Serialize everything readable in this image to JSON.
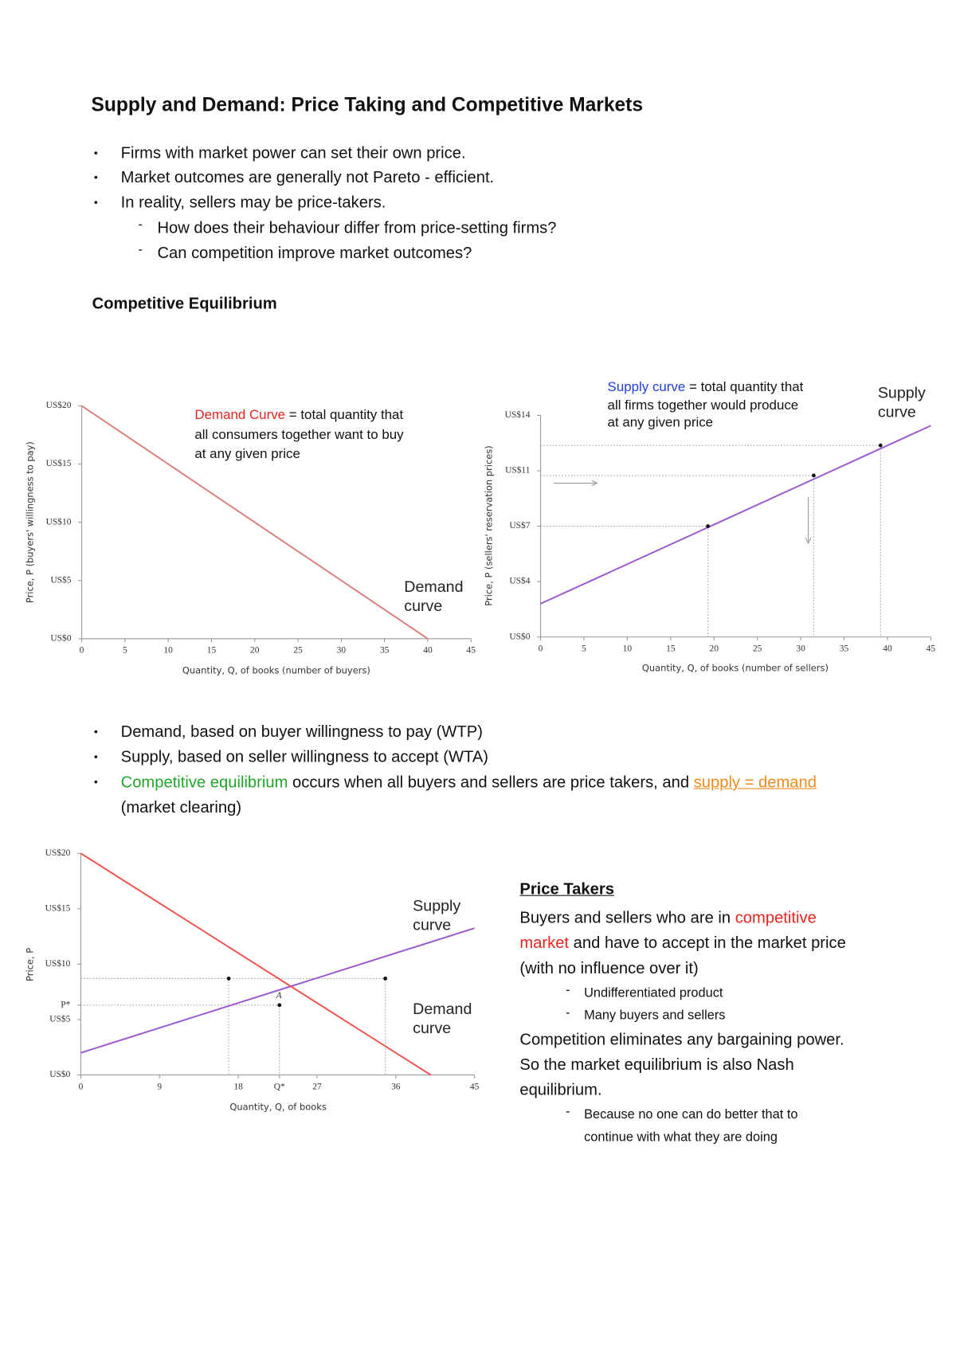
{
  "title": "Supply and Demand: Price Taking and Competitive Markets",
  "bullets": [
    "Firms with market power can set their own price.",
    "Market outcomes are generally not Pareto - efficient.",
    "In reality, sellers may be price-takers."
  ],
  "sub_bullets": [
    "How does their behaviour differ from price-setting firms?",
    "Can competition improve market outcomes?"
  ],
  "section_heading": "Competitive Equilibrium",
  "summary_bullets": [
    "Demand, based on buyer willingness to pay (WTP)",
    "Supply, based on seller willingness to accept (WTA)"
  ],
  "equilibrium_bullet": [
    "Competitive equilibrium",
    " occurs when all buyers and sellers are price takers, and ",
    "supply = demand",
    " (market clearing)"
  ],
  "price_takers": {
    "heading": "Price Takers",
    "definition": [
      "Buyers and sellers who are in ",
      "competitive market",
      " and have to accept in the market price (with no influence over it)"
    ],
    "points": [
      "Undifferentiated product",
      "Many buyers and sellers"
    ],
    "conclusion": "Competition eliminates any bargaining power. So the market equilibrium is also Nash equilibrium.",
    "conclusion_points": [
      "Because no one can do better that to continue with what they are doing"
    ]
  },
  "chart_data": [
    {
      "type": "line",
      "annotation": [
        "Demand Curve",
        " = total quantity that all consumers together want to buy at any given price"
      ],
      "annotation_color": "#e8241e",
      "xlabel": "Quantity, Q, of books (number of buyers)",
      "ylabel": "Price, P (buyers' willingness to pay)",
      "xlim": [
        0,
        45
      ],
      "ylim": [
        0,
        20
      ],
      "xticks": [
        0,
        5,
        10,
        15,
        20,
        25,
        30,
        35,
        40,
        45
      ],
      "yticks": [
        {
          "value": 0,
          "label": "US$0"
        },
        {
          "value": 5,
          "label": "US$5"
        },
        {
          "value": 10,
          "label": "US$10"
        },
        {
          "value": 15,
          "label": "US$15"
        },
        {
          "value": 20,
          "label": "US$20"
        }
      ],
      "series": [
        {
          "name": "Demand curve",
          "color": "#d9807c",
          "x": [
            0,
            40
          ],
          "values": [
            20,
            0
          ]
        }
      ]
    },
    {
      "type": "line",
      "annotation": [
        "Supply curve",
        " = total quantity that all firms together would produce at any given price"
      ],
      "annotation_color": "#1f3fe0",
      "xlabel": "Quantity, Q, of books (number of sellers)",
      "ylabel": "Price, P (sellers' reservation prices)",
      "xlim": [
        0,
        45
      ],
      "ylim": [
        0,
        14
      ],
      "xticks": [
        0,
        5,
        10,
        15,
        20,
        25,
        30,
        35,
        40,
        45
      ],
      "yticks": [
        {
          "value": 0,
          "label": "US$0"
        },
        {
          "value": 3.5,
          "label": "US$4"
        },
        {
          "value": 7,
          "label": "US$7"
        },
        {
          "value": 10.5,
          "label": "US$11"
        },
        {
          "value": 14,
          "label": "US$14"
        }
      ],
      "series": [
        {
          "name": "Supply curve",
          "color": "#9b59d0",
          "x": [
            0,
            45
          ],
          "values": [
            2.1,
            13.35
          ]
        }
      ],
      "points": {
        "color": "#111111",
        "x": [
          19.3,
          31.5,
          39.2
        ],
        "values": [
          7,
          10.2,
          12.1
        ]
      },
      "guides": true
    },
    {
      "type": "line",
      "annotation": "A",
      "xlabel": "Quantity, Q, of books",
      "ylabel": "Price, P",
      "xlim": [
        0,
        45
      ],
      "ylim": [
        0,
        20
      ],
      "xticks": [
        0,
        9,
        18,
        {
          "value": 22.7,
          "label": "Q*"
        },
        27,
        36,
        45
      ],
      "yticks": [
        {
          "value": 0,
          "label": "US$0"
        },
        {
          "value": 5,
          "label": "US$5"
        },
        {
          "value": 6.3,
          "label": "P*"
        },
        {
          "value": 10,
          "label": "US$10"
        },
        {
          "value": 15,
          "label": "US$15"
        },
        {
          "value": 20,
          "label": "US$20"
        }
      ],
      "series": [
        {
          "name": "Supply curve",
          "color": "#9b59d0",
          "x": [
            0,
            45
          ],
          "values": [
            2,
            13.25
          ]
        },
        {
          "name": "Demand curve",
          "color": "#f0524d",
          "x": [
            0,
            40
          ],
          "values": [
            20,
            0
          ]
        }
      ],
      "points": {
        "color": "#111111",
        "x": [
          16.9,
          22.7,
          34.8
        ],
        "values": [
          8.7,
          6.3,
          8.7
        ]
      },
      "guides": true
    }
  ]
}
